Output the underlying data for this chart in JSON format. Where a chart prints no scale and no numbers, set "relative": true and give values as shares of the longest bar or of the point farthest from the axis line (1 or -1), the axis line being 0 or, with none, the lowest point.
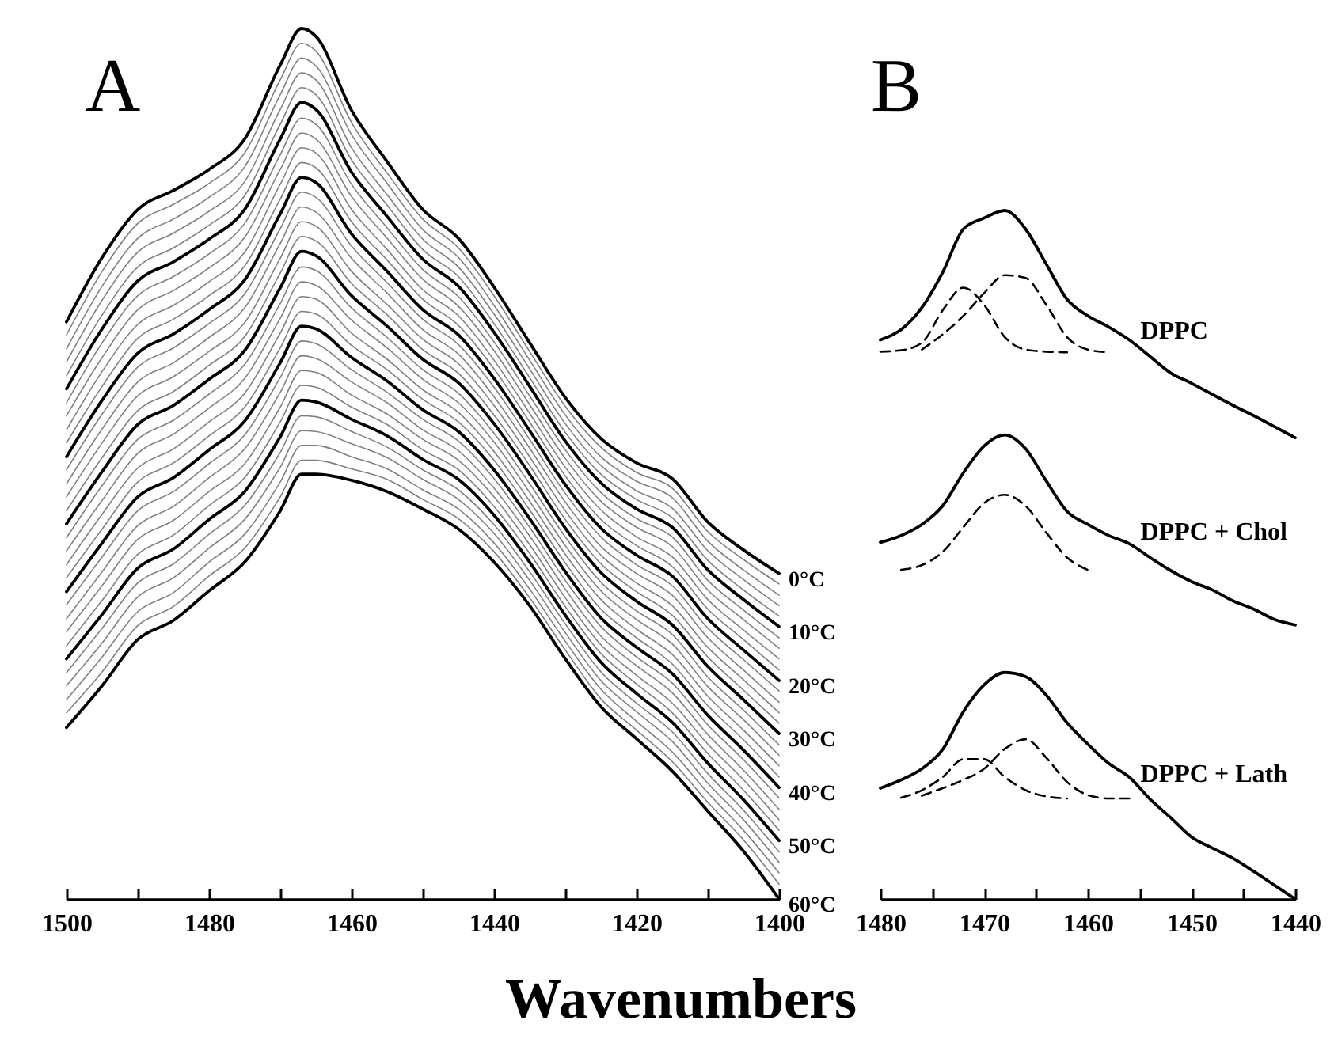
{
  "chart_data": [
    {
      "type": "line",
      "title": "A",
      "xlabel": "Wavenumbers",
      "relative": true,
      "x": [
        1500,
        1495,
        1490,
        1485,
        1480,
        1475,
        1470,
        1467,
        1465,
        1460,
        1455,
        1450,
        1445,
        1440,
        1435,
        1430,
        1425,
        1420,
        1415,
        1410,
        1405,
        1400
      ],
      "xlim": [
        1500,
        1400
      ],
      "xticks": [
        1500,
        {
          "value": 1490,
          "label": null
        },
        1480,
        {
          "value": 1470,
          "label": null
        },
        1460,
        {
          "value": 1450,
          "label": null
        },
        1440,
        {
          "value": 1430,
          "label": null
        },
        1420,
        {
          "value": 1410,
          "label": null
        },
        1400
      ],
      "series": [
        {
          "name": "0°C",
          "color": "#000000",
          "values": [
            0.663,
            0.737,
            0.792,
            0.814,
            0.838,
            0.873,
            0.958,
            1,
            0.991,
            0.906,
            0.847,
            0.792,
            0.759,
            0.703,
            0.639,
            0.576,
            0.529,
            0.501,
            0.483,
            0.433,
            0.401,
            0.374
          ]
        },
        {
          "color": "#808080",
          "values": [
            0.648,
            0.721,
            0.776,
            0.798,
            0.822,
            0.857,
            0.941,
            0.983,
            0.974,
            0.892,
            0.834,
            0.781,
            0.748,
            0.693,
            0.629,
            0.566,
            0.519,
            0.49,
            0.472,
            0.422,
            0.39,
            0.362
          ]
        },
        {
          "color": "#808080",
          "values": [
            0.632,
            0.704,
            0.759,
            0.781,
            0.806,
            0.841,
            0.924,
            0.966,
            0.957,
            0.878,
            0.822,
            0.769,
            0.737,
            0.682,
            0.619,
            0.556,
            0.508,
            0.48,
            0.461,
            0.411,
            0.378,
            0.349
          ]
        },
        {
          "color": "#808080",
          "values": [
            0.617,
            0.688,
            0.743,
            0.765,
            0.79,
            0.824,
            0.907,
            0.949,
            0.941,
            0.863,
            0.809,
            0.758,
            0.726,
            0.672,
            0.609,
            0.546,
            0.498,
            0.469,
            0.449,
            0.4,
            0.367,
            0.337
          ]
        },
        {
          "color": "#808080",
          "values": [
            0.601,
            0.671,
            0.726,
            0.748,
            0.774,
            0.808,
            0.89,
            0.932,
            0.924,
            0.849,
            0.797,
            0.746,
            0.715,
            0.661,
            0.599,
            0.536,
            0.488,
            0.459,
            0.438,
            0.389,
            0.355,
            0.325
          ]
        },
        {
          "name": "10°C",
          "color": "#000000",
          "values": [
            0.586,
            0.655,
            0.71,
            0.732,
            0.758,
            0.792,
            0.873,
            0.915,
            0.907,
            0.835,
            0.784,
            0.735,
            0.704,
            0.651,
            0.589,
            0.526,
            0.478,
            0.448,
            0.427,
            0.378,
            0.344,
            0.313
          ]
        },
        {
          "color": "#808080",
          "values": [
            0.57,
            0.639,
            0.693,
            0.715,
            0.741,
            0.776,
            0.855,
            0.897,
            0.89,
            0.821,
            0.771,
            0.723,
            0.692,
            0.64,
            0.578,
            0.516,
            0.467,
            0.437,
            0.416,
            0.366,
            0.332,
            0.3
          ]
        },
        {
          "color": "#808080",
          "values": [
            0.555,
            0.622,
            0.677,
            0.699,
            0.725,
            0.76,
            0.838,
            0.88,
            0.873,
            0.807,
            0.759,
            0.712,
            0.681,
            0.63,
            0.568,
            0.506,
            0.457,
            0.427,
            0.405,
            0.355,
            0.321,
            0.288
          ]
        },
        {
          "color": "#808080",
          "values": [
            0.539,
            0.606,
            0.66,
            0.682,
            0.709,
            0.743,
            0.821,
            0.863,
            0.857,
            0.792,
            0.746,
            0.7,
            0.67,
            0.619,
            0.558,
            0.496,
            0.447,
            0.416,
            0.393,
            0.344,
            0.309,
            0.276
          ]
        },
        {
          "color": "#808080",
          "values": [
            0.524,
            0.589,
            0.644,
            0.666,
            0.693,
            0.727,
            0.804,
            0.846,
            0.84,
            0.778,
            0.734,
            0.689,
            0.659,
            0.609,
            0.548,
            0.486,
            0.436,
            0.406,
            0.382,
            0.333,
            0.298,
            0.263
          ]
        },
        {
          "name": "20°C",
          "color": "#000000",
          "values": [
            0.508,
            0.573,
            0.627,
            0.649,
            0.677,
            0.711,
            0.787,
            0.829,
            0.823,
            0.764,
            0.721,
            0.677,
            0.648,
            0.598,
            0.538,
            0.476,
            0.426,
            0.395,
            0.371,
            0.322,
            0.286,
            0.251
          ]
        },
        {
          "color": "#808080",
          "values": [
            0.493,
            0.557,
            0.611,
            0.633,
            0.661,
            0.695,
            0.77,
            0.812,
            0.806,
            0.75,
            0.708,
            0.666,
            0.637,
            0.588,
            0.528,
            0.466,
            0.416,
            0.384,
            0.36,
            0.311,
            0.275,
            0.239
          ]
        },
        {
          "color": "#808080",
          "values": [
            0.477,
            0.54,
            0.594,
            0.616,
            0.645,
            0.679,
            0.753,
            0.795,
            0.789,
            0.736,
            0.696,
            0.654,
            0.626,
            0.577,
            0.518,
            0.456,
            0.405,
            0.374,
            0.349,
            0.3,
            0.263,
            0.226
          ]
        },
        {
          "color": "#808080",
          "values": [
            0.462,
            0.524,
            0.578,
            0.6,
            0.629,
            0.662,
            0.736,
            0.778,
            0.773,
            0.721,
            0.683,
            0.643,
            0.615,
            0.567,
            0.508,
            0.446,
            0.395,
            0.363,
            0.337,
            0.289,
            0.252,
            0.214
          ]
        },
        {
          "color": "#808080",
          "values": [
            0.446,
            0.507,
            0.561,
            0.583,
            0.613,
            0.646,
            0.719,
            0.761,
            0.756,
            0.707,
            0.671,
            0.631,
            0.604,
            0.556,
            0.498,
            0.436,
            0.385,
            0.353,
            0.326,
            0.278,
            0.24,
            0.202
          ]
        },
        {
          "name": "30°C",
          "color": "#000000",
          "values": [
            0.431,
            0.491,
            0.545,
            0.567,
            0.597,
            0.63,
            0.702,
            0.744,
            0.739,
            0.693,
            0.658,
            0.62,
            0.593,
            0.546,
            0.488,
            0.426,
            0.375,
            0.342,
            0.315,
            0.267,
            0.229,
            0.19
          ]
        },
        {
          "color": "#808080",
          "values": [
            0.415,
            0.475,
            0.528,
            0.55,
            0.58,
            0.614,
            0.684,
            0.726,
            0.722,
            0.679,
            0.645,
            0.608,
            0.581,
            0.535,
            0.477,
            0.416,
            0.364,
            0.331,
            0.304,
            0.255,
            0.217,
            0.177
          ]
        },
        {
          "color": "#808080",
          "values": [
            0.4,
            0.458,
            0.512,
            0.534,
            0.564,
            0.598,
            0.667,
            0.709,
            0.705,
            0.665,
            0.633,
            0.597,
            0.57,
            0.525,
            0.467,
            0.406,
            0.354,
            0.321,
            0.293,
            0.244,
            0.206,
            0.165
          ]
        },
        {
          "color": "#808080",
          "values": [
            0.384,
            0.442,
            0.495,
            0.517,
            0.548,
            0.581,
            0.65,
            0.692,
            0.689,
            0.65,
            0.62,
            0.585,
            0.559,
            0.514,
            0.457,
            0.396,
            0.344,
            0.31,
            0.281,
            0.233,
            0.194,
            0.153
          ]
        },
        {
          "color": "#808080",
          "values": [
            0.369,
            0.425,
            0.479,
            0.501,
            0.532,
            0.565,
            0.633,
            0.675,
            0.672,
            0.636,
            0.608,
            0.574,
            0.548,
            0.504,
            0.447,
            0.386,
            0.333,
            0.3,
            0.27,
            0.222,
            0.183,
            0.14
          ]
        },
        {
          "name": "40°C",
          "color": "#000000",
          "values": [
            0.353,
            0.409,
            0.462,
            0.484,
            0.516,
            0.549,
            0.616,
            0.658,
            0.655,
            0.622,
            0.595,
            0.562,
            0.537,
            0.493,
            0.437,
            0.376,
            0.323,
            0.289,
            0.259,
            0.211,
            0.171,
            0.128
          ]
        },
        {
          "color": "#808080",
          "values": [
            0.338,
            0.393,
            0.446,
            0.468,
            0.5,
            0.533,
            0.599,
            0.641,
            0.638,
            0.608,
            0.582,
            0.551,
            0.526,
            0.483,
            0.427,
            0.366,
            0.313,
            0.278,
            0.248,
            0.2,
            0.16,
            0.116
          ]
        },
        {
          "color": "#808080",
          "values": [
            0.322,
            0.376,
            0.429,
            0.451,
            0.484,
            0.517,
            0.582,
            0.624,
            0.621,
            0.594,
            0.57,
            0.539,
            0.515,
            0.472,
            0.417,
            0.356,
            0.302,
            0.268,
            0.237,
            0.189,
            0.148,
            0.103
          ]
        },
        {
          "color": "#808080",
          "values": [
            0.307,
            0.36,
            0.413,
            0.435,
            0.468,
            0.5,
            0.565,
            0.607,
            0.605,
            0.579,
            0.557,
            0.528,
            0.504,
            0.462,
            0.407,
            0.346,
            0.292,
            0.257,
            0.225,
            0.178,
            0.137,
            0.091
          ]
        },
        {
          "color": "#808080",
          "values": [
            0.291,
            0.343,
            0.396,
            0.418,
            0.452,
            0.484,
            0.548,
            0.59,
            0.588,
            0.565,
            0.545,
            0.516,
            0.493,
            0.451,
            0.397,
            0.336,
            0.282,
            0.247,
            0.214,
            0.167,
            0.125,
            0.079
          ]
        },
        {
          "name": "50°C",
          "color": "#000000",
          "values": [
            0.276,
            0.327,
            0.38,
            0.402,
            0.436,
            0.468,
            0.531,
            0.573,
            0.571,
            0.551,
            0.532,
            0.505,
            0.482,
            0.441,
            0.387,
            0.326,
            0.272,
            0.236,
            0.203,
            0.156,
            0.114,
            0.067
          ]
        },
        {
          "color": "#808080",
          "values": [
            0.26,
            0.311,
            0.363,
            0.385,
            0.419,
            0.452,
            0.513,
            0.555,
            0.554,
            0.537,
            0.519,
            0.493,
            0.47,
            0.43,
            0.376,
            0.316,
            0.261,
            0.225,
            0.192,
            0.144,
            0.102,
            0.054
          ]
        },
        {
          "color": "#808080",
          "values": [
            0.245,
            0.294,
            0.347,
            0.369,
            0.403,
            0.436,
            0.496,
            0.538,
            0.537,
            0.523,
            0.507,
            0.482,
            0.459,
            0.42,
            0.366,
            0.306,
            0.251,
            0.215,
            0.181,
            0.133,
            0.091,
            0.042
          ]
        },
        {
          "color": "#808080",
          "values": [
            0.229,
            0.278,
            0.33,
            0.352,
            0.387,
            0.419,
            0.479,
            0.521,
            0.521,
            0.508,
            0.494,
            0.47,
            0.448,
            0.409,
            0.356,
            0.296,
            0.241,
            0.204,
            0.169,
            0.122,
            0.079,
            0.03
          ]
        },
        {
          "color": "#808080",
          "values": [
            0.214,
            0.261,
            0.314,
            0.336,
            0.371,
            0.403,
            0.462,
            0.504,
            0.504,
            0.494,
            0.482,
            0.459,
            0.437,
            0.399,
            0.346,
            0.286,
            0.23,
            0.194,
            0.158,
            0.111,
            0.068,
            0.017
          ]
        },
        {
          "name": "60°C",
          "color": "#000000",
          "values": [
            0.197,
            0.245,
            0.298,
            0.32,
            0.354,
            0.387,
            0.446,
            0.488,
            0.488,
            0.481,
            0.468,
            0.448,
            0.425,
            0.387,
            0.337,
            0.276,
            0.221,
            0.184,
            0.147,
            0.101,
            0.055,
            0
          ]
        }
      ]
    },
    {
      "type": "line",
      "title": "B",
      "relative": true,
      "x": [
        1480,
        1478,
        1476,
        1474,
        1472,
        1470,
        1468,
        1466,
        1464,
        1462,
        1460,
        1458,
        1456,
        1454,
        1452,
        1450,
        1448,
        1446,
        1444,
        1442,
        1440
      ],
      "xlim": [
        1480,
        1440
      ],
      "xticks": [
        1480,
        {
          "value": 1475,
          "label": null
        },
        1470,
        {
          "value": 1465,
          "label": null
        },
        1460,
        {
          "value": 1455,
          "label": null
        },
        1450,
        {
          "value": 1445,
          "label": null
        },
        1440
      ],
      "series": [
        {
          "name": "DPPC",
          "color": "#000000",
          "values": [
            0.812,
            0.827,
            0.859,
            0.91,
            0.973,
            0.989,
            1,
            0.973,
            0.922,
            0.871,
            0.847,
            0.831,
            0.812,
            0.788,
            0.764,
            0.749,
            0.733,
            0.717,
            0.702,
            0.686,
            0.67
          ]
        },
        {
          "color": "#000000",
          "line_style": "dashed",
          "x": [
            1480,
            1478,
            1476,
            1474,
            1472,
            1470,
            1468,
            1466,
            1464,
            1462
          ],
          "values": [
            0.795,
            0.797,
            0.808,
            0.855,
            0.888,
            0.863,
            0.816,
            0.798,
            0.795,
            0.794
          ]
        },
        {
          "color": "#000000",
          "line_style": "dashed",
          "x": [
            1476,
            1474,
            1472,
            1470,
            1468,
            1466,
            1464,
            1462,
            1460,
            1458
          ],
          "values": [
            0.798,
            0.82,
            0.847,
            0.88,
            0.906,
            0.902,
            0.863,
            0.816,
            0.798,
            0.794
          ]
        },
        {
          "name": "DPPC + Chol",
          "color": "#000000",
          "values": [
            0.518,
            0.528,
            0.544,
            0.571,
            0.619,
            0.658,
            0.674,
            0.654,
            0.607,
            0.563,
            0.544,
            0.528,
            0.516,
            0.496,
            0.477,
            0.461,
            0.449,
            0.433,
            0.421,
            0.406,
            0.398
          ]
        },
        {
          "color": "#000000",
          "line_style": "dashed",
          "x": [
            1478,
            1476,
            1474,
            1472,
            1470,
            1468,
            1466,
            1464,
            1462,
            1460
          ],
          "values": [
            0.478,
            0.485,
            0.504,
            0.54,
            0.575,
            0.587,
            0.571,
            0.532,
            0.496,
            0.478
          ]
        },
        {
          "name": "DPPC + Lath",
          "color": "#000000",
          "values": [
            0.161,
            0.173,
            0.189,
            0.217,
            0.272,
            0.311,
            0.329,
            0.323,
            0.296,
            0.256,
            0.225,
            0.197,
            0.177,
            0.145,
            0.118,
            0.09,
            0.074,
            0.059,
            0.04,
            0.02,
            0
          ]
        },
        {
          "color": "#000000",
          "line_style": "dashed",
          "x": [
            1478,
            1476,
            1474,
            1472,
            1470,
            1468,
            1466,
            1464,
            1462
          ],
          "values": [
            0.147,
            0.158,
            0.177,
            0.203,
            0.203,
            0.177,
            0.158,
            0.149,
            0.146
          ]
        },
        {
          "color": "#000000",
          "line_style": "dashed",
          "x": [
            1476,
            1474,
            1472,
            1470,
            1468,
            1466,
            1464,
            1462,
            1460,
            1458,
            1456
          ],
          "values": [
            0.15,
            0.161,
            0.173,
            0.189,
            0.218,
            0.232,
            0.205,
            0.17,
            0.151,
            0.146,
            0.146
          ]
        }
      ]
    }
  ]
}
